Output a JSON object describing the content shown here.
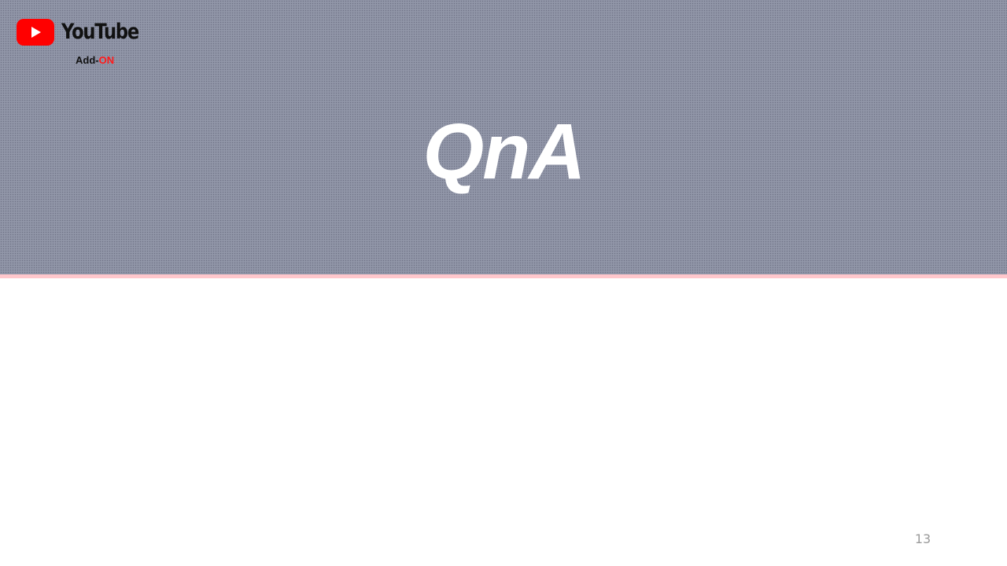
{
  "header": {
    "logo": {
      "brand_text": "YouTube",
      "addon_prefix": "Add-",
      "addon_suffix": "ON"
    },
    "title": "QnA"
  },
  "footer": {
    "page_number": "13"
  },
  "colors": {
    "banner_background": "#9196a8",
    "accent_strip": "#ffc7cc",
    "brand_red": "#ff0000",
    "addon_on_red": "#ff1a1a",
    "title_text": "#ffffff",
    "page_number_text": "#9a9a9a"
  },
  "icons": {
    "logo_icon": "youtube-play-icon"
  }
}
